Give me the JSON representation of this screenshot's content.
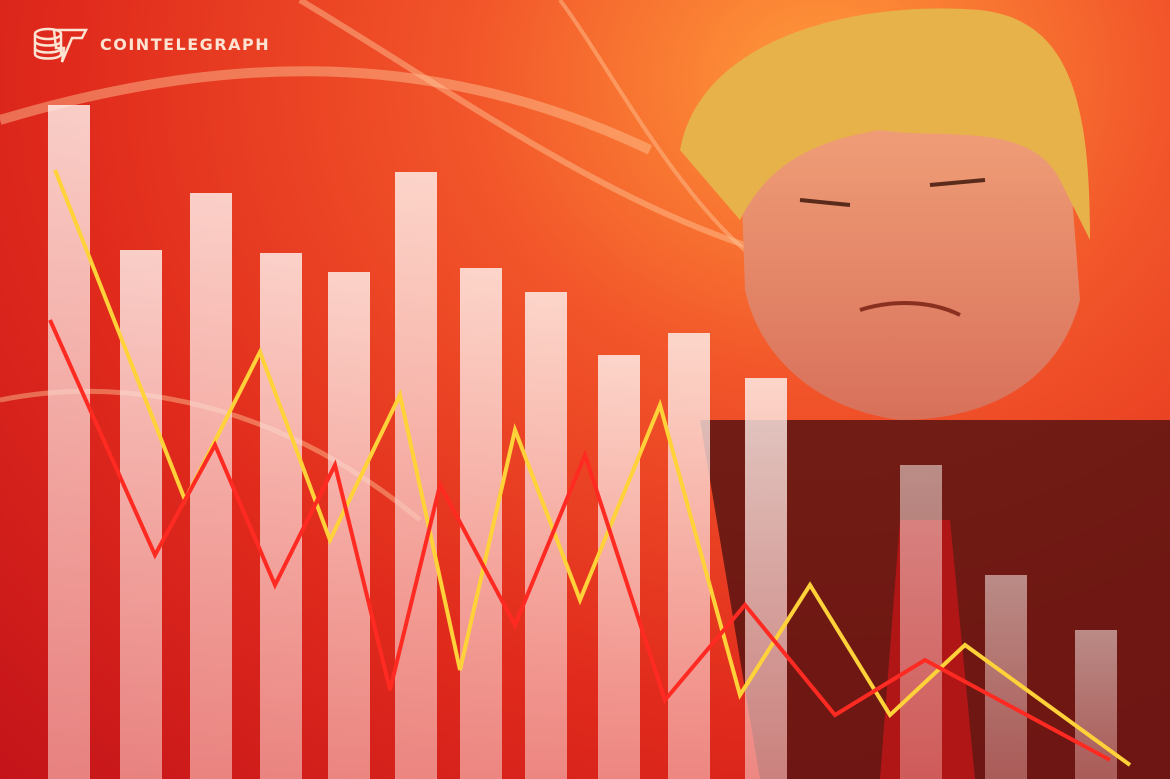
{
  "brand": {
    "name": "COINTELEGRAPH",
    "logo_icon": "cointelegraph-coin-stack-logo"
  },
  "colors": {
    "background": "#e02a1c",
    "background_glow": "#ff9a3a",
    "bars": "#fde4e0",
    "line_yellow": "#ffd23a",
    "line_red": "#ff2a22",
    "hair": "#e8b24a",
    "suit": "#5a1412"
  }
}
